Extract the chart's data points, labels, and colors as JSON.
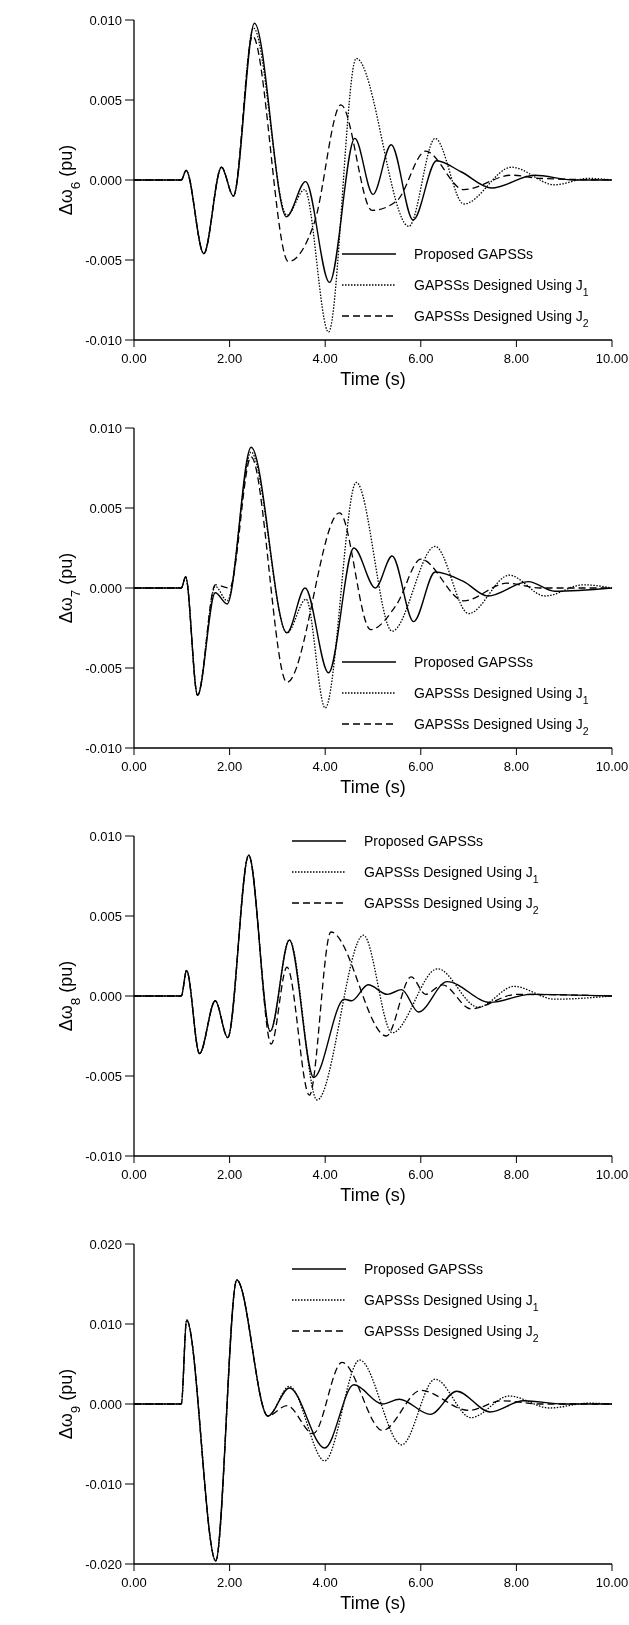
{
  "chart_data": [
    {
      "type": "line",
      "xlabel": "Time (s)",
      "ylabel": "Δω$_{6}$ (pu)",
      "xlim": [
        0,
        10
      ],
      "ylim": [
        -0.01,
        0.01
      ],
      "legend": "bottom right",
      "grid": false,
      "xticks": [
        {
          "value": 0,
          "label": "0.00"
        },
        {
          "value": 2,
          "label": "2.00"
        },
        {
          "value": 4,
          "label": "4.00"
        },
        {
          "value": 6,
          "label": "6.00"
        },
        {
          "value": 8,
          "label": "8.00"
        },
        {
          "value": 10,
          "label": "10.00"
        }
      ],
      "yticks": [
        {
          "value": -0.01,
          "label": "-0.010"
        },
        {
          "value": -0.005,
          "label": "-0.005"
        },
        {
          "value": 0,
          "label": "0.000"
        },
        {
          "value": 0.005,
          "label": "0.005"
        },
        {
          "value": 0.01,
          "label": "0.010"
        }
      ],
      "series": [
        {
          "name": "Proposed GAPSSs",
          "color": "#000000",
          "line_style": "solid",
          "x": [
            0,
            0.99,
            1.09,
            1.46,
            1.83,
            2.08,
            2.52,
            3.19,
            3.59,
            4.09,
            4.62,
            5.0,
            5.38,
            5.84,
            6.33,
            6.85,
            7.48,
            8.38,
            9.2,
            10
          ],
          "values": [
            0,
            0,
            0.0006,
            -0.0046,
            0.0008,
            -0.001,
            0.0098,
            -0.0023,
            -0.0001,
            -0.0064,
            0.0026,
            -0.0009,
            0.0022,
            -0.0025,
            0.0012,
            0.0005,
            -0.0005,
            0.0003,
            0,
            0
          ]
        },
        {
          "name": "GAPSSs Designed Using J$_{1}$",
          "color": "#000000",
          "line_style": "dotted",
          "x": [
            0,
            0.99,
            1.09,
            1.46,
            1.83,
            2.08,
            2.5,
            3.2,
            3.57,
            4.07,
            4.65,
            5.75,
            6.3,
            6.9,
            7.9,
            8.8,
            9.5,
            10
          ],
          "values": [
            0,
            0,
            0.0006,
            -0.0046,
            0.0008,
            -0.001,
            0.0095,
            -0.0022,
            -0.0006,
            -0.0095,
            0.0076,
            -0.0029,
            0.0026,
            -0.0015,
            0.0008,
            -0.0003,
            0.0001,
            0
          ]
        },
        {
          "name": "GAPSSs Designed Using J$_{2}$",
          "color": "#000000",
          "line_style": "dashed",
          "x": [
            0,
            0.99,
            1.09,
            1.46,
            1.83,
            2.08,
            2.48,
            3.23,
            3.78,
            4.33,
            4.98,
            5.5,
            6.1,
            6.9,
            7.9,
            8.5,
            10
          ],
          "values": [
            0,
            0,
            0.0006,
            -0.0046,
            0.0008,
            -0.001,
            0.009,
            -0.0051,
            -0.0026,
            0.0047,
            -0.0019,
            -0.0013,
            0.0018,
            -0.0006,
            0.0003,
            0.0001,
            0
          ]
        }
      ]
    },
    {
      "type": "line",
      "xlabel": "Time (s)",
      "ylabel": "Δω$_{7}$ (pu)",
      "xlim": [
        0,
        10
      ],
      "ylim": [
        -0.01,
        0.01
      ],
      "legend": "bottom right",
      "grid": false,
      "xticks": [
        {
          "value": 0,
          "label": "0.00"
        },
        {
          "value": 2,
          "label": "2.00"
        },
        {
          "value": 4,
          "label": "4.00"
        },
        {
          "value": 6,
          "label": "6.00"
        },
        {
          "value": 8,
          "label": "8.00"
        },
        {
          "value": 10,
          "label": "10.00"
        }
      ],
      "yticks": [
        {
          "value": -0.01,
          "label": "-0.010"
        },
        {
          "value": -0.005,
          "label": "-0.005"
        },
        {
          "value": 0,
          "label": "0.000"
        },
        {
          "value": 0.005,
          "label": "0.005"
        },
        {
          "value": 0.01,
          "label": "0.010"
        }
      ],
      "series": [
        {
          "name": "Proposed GAPSSs",
          "color": "#000000",
          "line_style": "solid",
          "x": [
            0,
            0.99,
            1.08,
            1.33,
            1.7,
            1.95,
            2.45,
            3.2,
            3.58,
            4.07,
            4.6,
            5.05,
            5.4,
            5.85,
            6.3,
            6.9,
            7.4,
            8.25,
            8.8,
            10
          ],
          "values": [
            0,
            0,
            0.0007,
            -0.0067,
            -0.0003,
            -0.001,
            0.0088,
            -0.0028,
            0,
            -0.0053,
            0.0025,
            0,
            0.002,
            -0.0021,
            0.001,
            0.0004,
            -0.0005,
            0.0004,
            -0.0002,
            0
          ]
        },
        {
          "name": "GAPSSs Designed Using J$_{1}$",
          "color": "#000000",
          "line_style": "dotted",
          "x": [
            0,
            0.99,
            1.08,
            1.33,
            1.7,
            1.95,
            2.45,
            3.2,
            3.6,
            4.0,
            4.65,
            5.4,
            6.3,
            7.0,
            7.85,
            8.6,
            9.4,
            10
          ],
          "values": [
            0,
            0,
            0.0007,
            -0.0067,
            0.0001,
            -0.0008,
            0.0085,
            -0.0028,
            -0.0007,
            -0.0075,
            0.0066,
            -0.0027,
            0.0026,
            -0.0016,
            0.0008,
            -0.0005,
            0.0002,
            0
          ]
        },
        {
          "name": "GAPSSs Designed Using J$_{2}$",
          "color": "#000000",
          "line_style": "dashed",
          "x": [
            0,
            0.99,
            1.08,
            1.33,
            1.7,
            2.0,
            2.45,
            3.2,
            4.3,
            4.95,
            5.5,
            6.0,
            6.9,
            7.8,
            8.5,
            10
          ],
          "values": [
            0,
            0,
            0.0007,
            -0.0067,
            0.0002,
            0,
            0.0082,
            -0.0059,
            0.0047,
            -0.0026,
            -0.001,
            0.0018,
            -0.0008,
            0.0003,
            0,
            0
          ]
        }
      ]
    },
    {
      "type": "line",
      "xlabel": "Time (s)",
      "ylabel": "Δω$_{8}$ (pu)",
      "xlim": [
        0,
        10
      ],
      "ylim": [
        -0.01,
        0.01
      ],
      "legend": "top right",
      "grid": false,
      "xticks": [
        {
          "value": 0,
          "label": "0.00"
        },
        {
          "value": 2,
          "label": "2.00"
        },
        {
          "value": 4,
          "label": "4.00"
        },
        {
          "value": 6,
          "label": "6.00"
        },
        {
          "value": 8,
          "label": "8.00"
        },
        {
          "value": 10,
          "label": "10.00"
        }
      ],
      "yticks": [
        {
          "value": -0.01,
          "label": "-0.010"
        },
        {
          "value": -0.005,
          "label": "-0.005"
        },
        {
          "value": 0,
          "label": "0.000"
        },
        {
          "value": 0.005,
          "label": "0.005"
        },
        {
          "value": 0.01,
          "label": "0.010"
        }
      ],
      "series": [
        {
          "name": "Proposed GAPSSs",
          "color": "#000000",
          "line_style": "solid",
          "x": [
            0,
            0.99,
            1.1,
            1.37,
            1.7,
            1.96,
            2.4,
            2.85,
            3.25,
            3.76,
            4.4,
            4.55,
            4.9,
            5.3,
            5.6,
            5.95,
            6.55,
            7.45,
            8.3,
            10
          ],
          "values": [
            0,
            0,
            0.0016,
            -0.0036,
            -0.0003,
            -0.0026,
            0.0088,
            -0.0022,
            0.0035,
            -0.0051,
            -0.0002,
            -0.0003,
            0.0007,
            0.0001,
            0.0004,
            -0.001,
            0.0009,
            -0.0004,
            0.0001,
            0
          ]
        },
        {
          "name": "GAPSSs Designed Using J$_{1}$",
          "color": "#000000",
          "line_style": "dotted",
          "x": [
            0,
            0.99,
            1.1,
            1.37,
            1.7,
            1.96,
            2.4,
            2.85,
            3.25,
            3.83,
            4.8,
            5.4,
            6.35,
            7.2,
            7.95,
            8.8,
            10
          ],
          "values": [
            0,
            0,
            0.0016,
            -0.0036,
            -0.0003,
            -0.0026,
            0.0088,
            -0.0022,
            0.0035,
            -0.0065,
            0.0038,
            -0.0023,
            0.0017,
            -0.0007,
            0.0006,
            -0.0002,
            0
          ]
        },
        {
          "name": "GAPSSs Designed Using J$_{2}$",
          "color": "#000000",
          "line_style": "dashed",
          "x": [
            0,
            0.99,
            1.1,
            1.37,
            1.7,
            1.96,
            2.4,
            2.87,
            3.2,
            3.67,
            4.12,
            5.28,
            5.8,
            6.1,
            6.45,
            7.05,
            8.0,
            10
          ],
          "values": [
            0,
            0,
            0.0016,
            -0.0036,
            -0.0003,
            -0.0026,
            0.0088,
            -0.003,
            0.0018,
            -0.0062,
            0.004,
            -0.0025,
            0.0012,
            0.0001,
            0.0007,
            -0.0008,
            0.0001,
            0
          ]
        }
      ]
    },
    {
      "type": "line",
      "xlabel": "Time (s)",
      "ylabel": "Δω$_{9}$ (pu)",
      "xlim": [
        0,
        10
      ],
      "ylim": [
        -0.02,
        0.02
      ],
      "legend": "top right",
      "grid": false,
      "xticks": [
        {
          "value": 0,
          "label": "0.00"
        },
        {
          "value": 2,
          "label": "2.00"
        },
        {
          "value": 4,
          "label": "4.00"
        },
        {
          "value": 6,
          "label": "6.00"
        },
        {
          "value": 8,
          "label": "8.00"
        },
        {
          "value": 10,
          "label": "10.00"
        }
      ],
      "yticks": [
        {
          "value": -0.02,
          "label": "-0.020"
        },
        {
          "value": -0.01,
          "label": "-0.010"
        },
        {
          "value": 0,
          "label": "0.000"
        },
        {
          "value": 0.01,
          "label": "0.010"
        },
        {
          "value": 0.02,
          "label": "0.020"
        }
      ],
      "series": [
        {
          "name": "Proposed GAPSSs",
          "color": "#000000",
          "line_style": "solid",
          "x": [
            0,
            0.99,
            1.1,
            1.71,
            2.15,
            2.8,
            3.25,
            3.99,
            4.6,
            5.2,
            5.55,
            6.2,
            6.75,
            7.45,
            8.15,
            9.0,
            10
          ],
          "values": [
            0,
            0,
            0.0105,
            -0.0196,
            0.0155,
            -0.0015,
            0.002,
            -0.0055,
            0.0024,
            0,
            0.0006,
            -0.0013,
            0.0016,
            -0.001,
            0.0004,
            0,
            0
          ]
        },
        {
          "name": "GAPSSs Designed Using J$_{1}$",
          "color": "#000000",
          "line_style": "dotted",
          "x": [
            0,
            0.99,
            1.1,
            1.71,
            2.15,
            2.8,
            3.25,
            3.99,
            4.72,
            5.6,
            6.3,
            7.05,
            7.85,
            8.7,
            9.5,
            10
          ],
          "values": [
            0,
            0,
            0.0105,
            -0.0196,
            0.0155,
            -0.0015,
            0.0022,
            -0.0071,
            0.0055,
            -0.0051,
            0.0031,
            -0.0017,
            0.001,
            -0.0005,
            0.0001,
            0
          ]
        },
        {
          "name": "GAPSSs Designed Using J$_{2}$",
          "color": "#000000",
          "line_style": "dashed",
          "x": [
            0,
            0.99,
            1.1,
            1.71,
            2.15,
            2.8,
            3.2,
            3.75,
            4.35,
            5.2,
            6.0,
            7.0,
            7.7,
            8.5,
            10
          ],
          "values": [
            0,
            0,
            0.0105,
            -0.0196,
            0.0155,
            -0.0015,
            -0.0002,
            -0.0037,
            0.0052,
            -0.0033,
            0.0017,
            -0.0008,
            0.0004,
            0,
            0
          ]
        }
      ]
    }
  ]
}
